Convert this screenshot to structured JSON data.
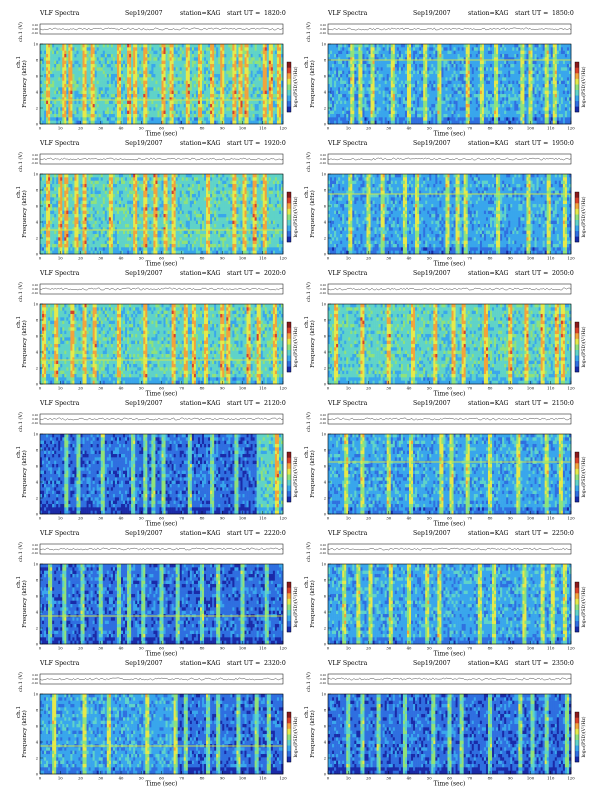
{
  "header_common": {
    "title": "VLF Spectra",
    "date": "Sep19/2007",
    "station": "station=KAG",
    "start_label": "start  UT  ="
  },
  "axis_text": {
    "xlabel": "Time  (sec)",
    "ylabel": "Frequency  (kHz)",
    "ch_label": "ch.1",
    "volt_label": "ch.1 (V)",
    "cbar_label": "log₁₀(PSD)(V²/Hz)"
  },
  "palette": [
    "#1a2aa8",
    "#2f6fe0",
    "#39a6ec",
    "#5fd3c8",
    "#8fe27a",
    "#e6e94a",
    "#f2a33a",
    "#d8402a",
    "#8a1a1a"
  ],
  "chart_data": [
    {
      "type": "heatmap",
      "start_ut": "1820:0",
      "x_ticks": [
        0,
        10,
        20,
        30,
        40,
        50,
        60,
        70,
        80,
        90,
        100,
        110,
        120
      ],
      "y_ticks": [
        0,
        2,
        4,
        6,
        8,
        10
      ],
      "volt_ticks": [
        "0.20",
        "0.00",
        "-0.20"
      ],
      "xlim": [
        0,
        120
      ],
      "ylim": [
        0,
        10
      ],
      "background_level": 3,
      "line_khz": 3.0,
      "cut_sec": null,
      "right_level": null,
      "bursts": [
        [
          4,
          0.9
        ],
        [
          12,
          0.9
        ],
        [
          15,
          1.0
        ],
        [
          22,
          0.9
        ],
        [
          26,
          0.9
        ],
        [
          39,
          0.9
        ],
        [
          44,
          1.0
        ],
        [
          47,
          0.9
        ],
        [
          52,
          0.9
        ],
        [
          61,
          0.9
        ],
        [
          65,
          0.9
        ],
        [
          73,
          0.9
        ],
        [
          79,
          0.9
        ],
        [
          85,
          0.9
        ],
        [
          90,
          0.9
        ],
        [
          96,
          0.9
        ],
        [
          99,
          0.9
        ],
        [
          102,
          0.9
        ],
        [
          111,
          1.0
        ],
        [
          114,
          0.9
        ],
        [
          118,
          0.9
        ]
      ]
    },
    {
      "type": "heatmap",
      "start_ut": "1850:0",
      "x_ticks": [
        0,
        10,
        20,
        30,
        40,
        50,
        60,
        70,
        80,
        90,
        100,
        110,
        120
      ],
      "y_ticks": [
        0,
        2,
        4,
        6,
        8,
        10
      ],
      "volt_ticks": [
        "0.20",
        "0.00",
        "-0.20"
      ],
      "xlim": [
        0,
        120
      ],
      "ylim": [
        0,
        10
      ],
      "background_level": 2,
      "line_khz": 8.0,
      "cut_sec": null,
      "right_level": null,
      "bursts": [
        [
          12,
          0.9
        ],
        [
          16,
          0.9
        ],
        [
          22,
          0.9
        ],
        [
          32,
          0.9
        ],
        [
          40,
          0.9
        ],
        [
          48,
          0.9
        ],
        [
          55,
          0.9
        ],
        [
          69,
          1.0
        ],
        [
          76,
          0.9
        ],
        [
          83,
          0.9
        ],
        [
          96,
          0.9
        ],
        [
          100,
          0.9
        ],
        [
          108,
          0.9
        ],
        [
          112,
          0.9
        ]
      ]
    },
    {
      "type": "heatmap",
      "start_ut": "1920:0",
      "x_ticks": [
        0,
        10,
        20,
        30,
        40,
        50,
        60,
        70,
        80,
        90,
        100,
        110,
        120
      ],
      "y_ticks": [
        0,
        2,
        4,
        6,
        8,
        10
      ],
      "volt_ticks": [
        "0.20",
        "0.00",
        "-0.20"
      ],
      "xlim": [
        0,
        120
      ],
      "ylim": [
        0,
        10
      ],
      "background_level": 3,
      "line_khz": 3.0,
      "cut_sec": null,
      "right_level": null,
      "bursts": [
        [
          4,
          0.9
        ],
        [
          10,
          0.9
        ],
        [
          13,
          0.9
        ],
        [
          18,
          0.9
        ],
        [
          22,
          0.9
        ],
        [
          35,
          0.9
        ],
        [
          47,
          0.9
        ],
        [
          52,
          0.9
        ],
        [
          57,
          0.9
        ],
        [
          62,
          0.9
        ],
        [
          66,
          0.9
        ],
        [
          83,
          0.9
        ],
        [
          96,
          0.9
        ],
        [
          101,
          0.9
        ],
        [
          106,
          1.0
        ],
        [
          111,
          0.9
        ]
      ]
    },
    {
      "type": "heatmap",
      "start_ut": "1950:0",
      "x_ticks": [
        0,
        10,
        20,
        30,
        40,
        50,
        60,
        70,
        80,
        90,
        100,
        110,
        120
      ],
      "y_ticks": [
        0,
        2,
        4,
        6,
        8,
        10
      ],
      "volt_ticks": [
        "0.20",
        "0.00",
        "-0.20"
      ],
      "xlim": [
        0,
        120
      ],
      "ylim": [
        0,
        10
      ],
      "background_level": 2,
      "line_khz": 7.5,
      "cut_sec": null,
      "right_level": null,
      "bursts": [
        [
          11,
          0.9
        ],
        [
          20,
          0.9
        ],
        [
          27,
          0.9
        ],
        [
          38,
          0.9
        ],
        [
          44,
          0.9
        ],
        [
          59,
          0.9
        ],
        [
          64,
          0.9
        ],
        [
          68,
          0.9
        ],
        [
          84,
          0.9
        ],
        [
          99,
          0.9
        ],
        [
          109,
          0.9
        ],
        [
          117,
          0.9
        ]
      ]
    },
    {
      "type": "heatmap",
      "start_ut": "2020:0",
      "x_ticks": [
        0,
        10,
        20,
        30,
        40,
        50,
        60,
        70,
        80,
        90,
        100,
        110,
        120
      ],
      "y_ticks": [
        0,
        2,
        4,
        6,
        8,
        10
      ],
      "volt_ticks": [
        "0.20",
        "0.00",
        "-0.20"
      ],
      "xlim": [
        0,
        120
      ],
      "ylim": [
        0,
        10
      ],
      "background_level": 3,
      "line_khz": 3.0,
      "cut_sec": null,
      "right_level": null,
      "bursts": [
        [
          2,
          0.9
        ],
        [
          8,
          0.9
        ],
        [
          16,
          0.9
        ],
        [
          22,
          0.9
        ],
        [
          27,
          0.9
        ],
        [
          39,
          0.9
        ],
        [
          52,
          0.9
        ],
        [
          66,
          0.9
        ],
        [
          72,
          0.9
        ],
        [
          76,
          0.9
        ],
        [
          82,
          0.9
        ],
        [
          90,
          0.9
        ],
        [
          93,
          0.9
        ],
        [
          103,
          0.9
        ],
        [
          108,
          0.9
        ],
        [
          116,
          0.9
        ]
      ]
    },
    {
      "type": "heatmap",
      "start_ut": "2050:0",
      "x_ticks": [
        0,
        10,
        20,
        30,
        40,
        50,
        60,
        70,
        80,
        90,
        100,
        110,
        120
      ],
      "y_ticks": [
        0,
        2,
        4,
        6,
        8,
        10
      ],
      "volt_ticks": [
        "0.20",
        "0.00",
        "-0.20"
      ],
      "xlim": [
        0,
        120
      ],
      "ylim": [
        0,
        10
      ],
      "background_level": 3,
      "line_khz": null,
      "cut_sec": null,
      "right_level": null,
      "bursts": [
        [
          4,
          0.9
        ],
        [
          17,
          0.9
        ],
        [
          30,
          0.9
        ],
        [
          42,
          0.9
        ],
        [
          53,
          0.9
        ],
        [
          62,
          0.9
        ],
        [
          67,
          0.9
        ],
        [
          78,
          0.9
        ],
        [
          90,
          0.9
        ],
        [
          98,
          0.9
        ],
        [
          106,
          0.9
        ],
        [
          113,
          0.9
        ],
        [
          116,
          0.9
        ]
      ]
    },
    {
      "type": "heatmap",
      "start_ut": "2120:0",
      "x_ticks": [
        0,
        10,
        20,
        30,
        40,
        50,
        60,
        70,
        80,
        90,
        100,
        110,
        120
      ],
      "y_ticks": [
        0,
        2,
        4,
        6,
        8,
        10
      ],
      "volt_ticks": [
        "0.20",
        "0.00",
        "-0.20"
      ],
      "xlim": [
        0,
        120
      ],
      "ylim": [
        0,
        10
      ],
      "background_level": 1,
      "line_khz": null,
      "cut_sec": 107,
      "right_level": 3,
      "bursts": [
        [
          13,
          0.9
        ],
        [
          19,
          0.9
        ],
        [
          31,
          0.9
        ],
        [
          46,
          0.9
        ],
        [
          52,
          0.9
        ],
        [
          56,
          0.9
        ],
        [
          61,
          0.9
        ],
        [
          74,
          0.9
        ],
        [
          85,
          0.9
        ],
        [
          97,
          0.9
        ],
        [
          117,
          0.9
        ]
      ]
    },
    {
      "type": "heatmap",
      "start_ut": "2150:0",
      "x_ticks": [
        0,
        10,
        20,
        30,
        40,
        50,
        60,
        70,
        80,
        90,
        100,
        110,
        120
      ],
      "y_ticks": [
        0,
        2,
        4,
        6,
        8,
        10
      ],
      "volt_ticks": [
        "0.20",
        "0.00",
        "-0.20"
      ],
      "xlim": [
        0,
        120
      ],
      "ylim": [
        0,
        10
      ],
      "background_level": 2,
      "line_khz": 6.5,
      "cut_sec": null,
      "right_level": null,
      "bursts": [
        [
          9,
          0.9
        ],
        [
          17,
          0.9
        ],
        [
          30,
          0.9
        ],
        [
          41,
          0.9
        ],
        [
          56,
          0.9
        ],
        [
          61,
          0.9
        ],
        [
          69,
          0.9
        ],
        [
          80,
          0.9
        ],
        [
          94,
          0.9
        ],
        [
          108,
          0.9
        ],
        [
          115,
          0.9
        ]
      ]
    },
    {
      "type": "heatmap",
      "start_ut": "2220:0",
      "x_ticks": [
        0,
        10,
        20,
        30,
        40,
        50,
        60,
        70,
        80,
        90,
        100,
        110,
        120
      ],
      "y_ticks": [
        0,
        2,
        4,
        6,
        8,
        10
      ],
      "volt_ticks": [
        "0.20",
        "0.00",
        "-0.20"
      ],
      "xlim": [
        0,
        120
      ],
      "ylim": [
        0,
        10
      ],
      "background_level": 1,
      "line_khz": 3.5,
      "cut_sec": null,
      "right_level": null,
      "bursts": [
        [
          5,
          0.9
        ],
        [
          12,
          0.9
        ],
        [
          21,
          0.9
        ],
        [
          30,
          0.9
        ],
        [
          39,
          0.9
        ],
        [
          44,
          0.9
        ],
        [
          51,
          0.9
        ],
        [
          60,
          0.9
        ],
        [
          68,
          0.9
        ],
        [
          80,
          0.9
        ],
        [
          88,
          0.9
        ],
        [
          100,
          0.9
        ],
        [
          112,
          0.9
        ]
      ]
    },
    {
      "type": "heatmap",
      "start_ut": "2250:0",
      "x_ticks": [
        0,
        10,
        20,
        30,
        40,
        50,
        60,
        70,
        80,
        90,
        100,
        110,
        120
      ],
      "y_ticks": [
        0,
        2,
        4,
        6,
        8,
        10
      ],
      "volt_ticks": [
        "0.20",
        "0.00",
        "-0.20"
      ],
      "xlim": [
        0,
        120
      ],
      "ylim": [
        0,
        10
      ],
      "background_level": 2,
      "line_khz": null,
      "cut_sec": null,
      "right_level": null,
      "bursts": [
        [
          8,
          0.9
        ],
        [
          15,
          0.9
        ],
        [
          21,
          0.9
        ],
        [
          31,
          0.9
        ],
        [
          40,
          0.9
        ],
        [
          49,
          0.9
        ],
        [
          55,
          0.9
        ],
        [
          75,
          0.9
        ],
        [
          82,
          0.9
        ],
        [
          97,
          0.9
        ],
        [
          106,
          0.9
        ],
        [
          111,
          0.9
        ],
        [
          117,
          0.9
        ]
      ]
    },
    {
      "type": "heatmap",
      "start_ut": "2320:0",
      "x_ticks": [
        0,
        10,
        20,
        30,
        40,
        50,
        60,
        70,
        80,
        90,
        100,
        110,
        120
      ],
      "y_ticks": [
        0,
        2,
        4,
        6,
        8,
        10
      ],
      "volt_ticks": [
        "0.20",
        "0.00",
        "-0.20"
      ],
      "xlim": [
        0,
        120
      ],
      "ylim": [
        0,
        10
      ],
      "background_level": 2,
      "line_khz": 3.5,
      "cut_sec": 67,
      "right_level": 1,
      "bursts": [
        [
          7,
          0.9
        ],
        [
          22,
          0.9
        ],
        [
          34,
          0.9
        ],
        [
          53,
          0.9
        ],
        [
          67,
          1.0
        ],
        [
          72,
          0.9
        ],
        [
          83,
          0.9
        ],
        [
          88,
          0.9
        ],
        [
          98,
          0.9
        ],
        [
          107,
          0.9
        ],
        [
          113,
          0.9
        ]
      ]
    },
    {
      "type": "heatmap",
      "start_ut": "2350:0",
      "x_ticks": [
        0,
        10,
        20,
        30,
        40,
        50,
        60,
        70,
        80,
        90,
        100,
        110,
        120
      ],
      "y_ticks": [
        0,
        2,
        4,
        6,
        8,
        10
      ],
      "volt_ticks": [
        "0.20",
        "0.00",
        "-0.20"
      ],
      "xlim": [
        0,
        120
      ],
      "ylim": [
        0,
        10
      ],
      "background_level": 1,
      "line_khz": null,
      "cut_sec": null,
      "right_level": null,
      "bursts": [
        [
          10,
          0.9
        ],
        [
          17,
          0.9
        ],
        [
          25,
          0.9
        ],
        [
          38,
          0.9
        ],
        [
          52,
          0.9
        ],
        [
          60,
          0.9
        ],
        [
          66,
          0.9
        ],
        [
          80,
          0.9
        ],
        [
          95,
          0.9
        ],
        [
          101,
          0.9
        ],
        [
          108,
          0.9
        ],
        [
          118,
          0.9
        ]
      ]
    }
  ]
}
